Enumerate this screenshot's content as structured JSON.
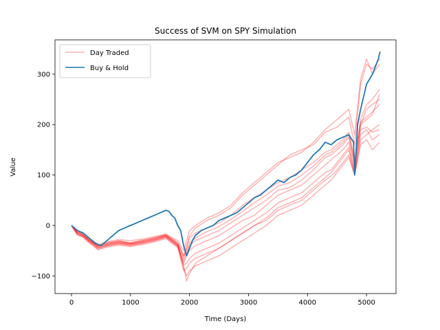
{
  "chart_data": {
    "type": "line",
    "title": "Success of SVM on SPY Simulation",
    "xlabel": "Time (Days)",
    "ylabel": "Value",
    "xlim": [
      -280,
      5500
    ],
    "ylim": [
      -135,
      368
    ],
    "xticks": [
      0,
      1000,
      2000,
      3000,
      4000,
      5000
    ],
    "yticks": [
      -100,
      0,
      100,
      200,
      300
    ],
    "xtick_labels": [
      "0",
      "1000",
      "2000",
      "3000",
      "4000",
      "5000"
    ],
    "ytick_labels": [
      "−100",
      "0",
      "100",
      "200",
      "300"
    ],
    "legend_position": "upper left",
    "grid": false,
    "series": [
      {
        "name": "Day Traded",
        "color": "#ff0000",
        "alpha": 0.3,
        "note_count": 10,
        "runs": [
          {
            "x": [
              0,
              100,
              200,
              300,
              450,
              600,
              800,
              1000,
              1200,
              1400,
              1600,
              1800,
              1900,
              1950,
              2000,
              2100,
              2300,
              2500,
              2700,
              2900,
              3100,
              3300,
              3500,
              3700,
              3900,
              4100,
              4300,
              4400,
              4500,
              4600,
              4700,
              4800,
              4900,
              5000,
              5100,
              5220
            ],
            "y": [
              0,
              -15,
              -20,
              -30,
              -40,
              -35,
              -30,
              -35,
              -30,
              -25,
              -20,
              -35,
              -60,
              -40,
              -20,
              -5,
              10,
              20,
              35,
              60,
              80,
              100,
              120,
              140,
              150,
              160,
              185,
              190,
              195,
              205,
              215,
              160,
              280,
              320,
              310,
              330
            ]
          },
          {
            "x": [
              0,
              100,
              200,
              300,
              450,
              600,
              800,
              1000,
              1200,
              1400,
              1600,
              1800,
              1900,
              1950,
              2000,
              2100,
              2300,
              2500,
              2700,
              2900,
              3100,
              3300,
              3500,
              3700,
              3900,
              4100,
              4300,
              4400,
              4500,
              4600,
              4700,
              4800,
              4900,
              5000,
              5100,
              5220
            ],
            "y": [
              0,
              -10,
              -15,
              -25,
              -38,
              -32,
              -28,
              -30,
              -27,
              -22,
              -18,
              -30,
              -50,
              -30,
              -10,
              0,
              15,
              25,
              40,
              65,
              85,
              105,
              125,
              135,
              145,
              165,
              190,
              200,
              210,
              220,
              230,
              180,
              290,
              330,
              300,
              320
            ]
          },
          {
            "x": [
              0,
              100,
              200,
              300,
              450,
              600,
              800,
              1000,
              1200,
              1400,
              1600,
              1800,
              1900,
              1950,
              2000,
              2100,
              2300,
              2500,
              2700,
              2900,
              3100,
              3300,
              3500,
              3700,
              3900,
              4100,
              4300,
              4400,
              4500,
              4600,
              4700,
              4800,
              4900,
              5000,
              5100,
              5220
            ],
            "y": [
              0,
              -18,
              -22,
              -32,
              -45,
              -40,
              -35,
              -38,
              -34,
              -30,
              -22,
              -40,
              -75,
              -60,
              -50,
              -40,
              -30,
              -20,
              -5,
              10,
              20,
              40,
              60,
              70,
              80,
              100,
              120,
              130,
              140,
              150,
              165,
              110,
              200,
              210,
              220,
              260
            ]
          },
          {
            "x": [
              0,
              100,
              200,
              300,
              450,
              600,
              800,
              1000,
              1200,
              1400,
              1600,
              1800,
              1900,
              1950,
              2000,
              2100,
              2300,
              2500,
              2700,
              2900,
              3100,
              3300,
              3500,
              3700,
              3900,
              4100,
              4300,
              4400,
              4500,
              4600,
              4700,
              4800,
              4900,
              5000,
              5100,
              5220
            ],
            "y": [
              0,
              -12,
              -18,
              -28,
              -42,
              -37,
              -32,
              -36,
              -31,
              -27,
              -20,
              -38,
              -85,
              -100,
              -90,
              -80,
              -70,
              -60,
              -45,
              -30,
              -15,
              0,
              20,
              30,
              40,
              60,
              80,
              90,
              105,
              120,
              135,
              100,
              170,
              180,
              190,
              200
            ]
          },
          {
            "x": [
              0,
              100,
              200,
              300,
              450,
              600,
              800,
              1000,
              1200,
              1400,
              1600,
              1800,
              1900,
              1950,
              2000,
              2100,
              2300,
              2500,
              2700,
              2900,
              3100,
              3300,
              3500,
              3700,
              3900,
              4100,
              4300,
              4400,
              4500,
              4600,
              4700,
              4800,
              4900,
              5000,
              5100,
              5220
            ],
            "y": [
              0,
              -14,
              -20,
              -30,
              -44,
              -38,
              -34,
              -37,
              -33,
              -28,
              -21,
              -39,
              -80,
              -110,
              -95,
              -75,
              -60,
              -45,
              -30,
              -15,
              0,
              15,
              35,
              45,
              55,
              75,
              95,
              105,
              120,
              135,
              150,
              100,
              180,
              190,
              170,
              180
            ]
          },
          {
            "x": [
              0,
              100,
              200,
              300,
              450,
              600,
              800,
              1000,
              1200,
              1400,
              1600,
              1800,
              1900,
              1950,
              2000,
              2100,
              2300,
              2500,
              2700,
              2900,
              3100,
              3300,
              3500,
              3700,
              3900,
              4100,
              4300,
              4400,
              4500,
              4600,
              4700,
              4800,
              4900,
              5000,
              5100,
              5220
            ],
            "y": [
              0,
              -16,
              -21,
              -31,
              -43,
              -39,
              -36,
              -39,
              -35,
              -29,
              -23,
              -41,
              -70,
              -55,
              -40,
              -30,
              -20,
              -10,
              5,
              20,
              35,
              50,
              70,
              75,
              90,
              110,
              135,
              140,
              150,
              160,
              175,
              120,
              200,
              230,
              240,
              250
            ]
          },
          {
            "x": [
              0,
              100,
              200,
              300,
              450,
              600,
              800,
              1000,
              1200,
              1400,
              1600,
              1800,
              1900,
              1950,
              2000,
              2100,
              2300,
              2500,
              2700,
              2900,
              3100,
              3300,
              3500,
              3700,
              3900,
              4100,
              4300,
              4400,
              4500,
              4600,
              4700,
              4800,
              4900,
              5000,
              5100,
              5220
            ],
            "y": [
              0,
              -13,
              -19,
              -29,
              -41,
              -36,
              -33,
              -36,
              -32,
              -26,
              -19,
              -37,
              -65,
              -45,
              -25,
              -15,
              -5,
              5,
              20,
              40,
              55,
              70,
              85,
              95,
              110,
              125,
              145,
              150,
              160,
              170,
              185,
              130,
              210,
              240,
              250,
              270
            ]
          },
          {
            "x": [
              0,
              100,
              200,
              300,
              450,
              600,
              800,
              1000,
              1200,
              1400,
              1600,
              1800,
              1900,
              1950,
              2000,
              2100,
              2300,
              2500,
              2700,
              2900,
              3100,
              3300,
              3500,
              3700,
              3900,
              4100,
              4300,
              4400,
              4500,
              4600,
              4700,
              4800,
              4900,
              5000,
              5100,
              5220
            ],
            "y": [
              0,
              -17,
              -23,
              -33,
              -47,
              -41,
              -37,
              -40,
              -36,
              -31,
              -24,
              -42,
              -78,
              -75,
              -65,
              -55,
              -45,
              -35,
              -20,
              -5,
              10,
              25,
              45,
              55,
              65,
              85,
              105,
              110,
              125,
              140,
              155,
              105,
              190,
              195,
              185,
              190
            ]
          },
          {
            "x": [
              0,
              100,
              200,
              300,
              450,
              600,
              800,
              1000,
              1200,
              1400,
              1600,
              1800,
              1900,
              1950,
              2000,
              2100,
              2300,
              2500,
              2700,
              2900,
              3100,
              3300,
              3500,
              3700,
              3900,
              4100,
              4300,
              4400,
              4500,
              4600,
              4700,
              4800,
              4900,
              5000,
              5100,
              5220
            ],
            "y": [
              0,
              -11,
              -17,
              -27,
              -40,
              -34,
              -31,
              -34,
              -29,
              -24,
              -17,
              -34,
              -60,
              -50,
              -35,
              -25,
              -12,
              -2,
              12,
              28,
              45,
              60,
              78,
              85,
              100,
              118,
              140,
              145,
              155,
              165,
              180,
              125,
              205,
              215,
              225,
              240
            ]
          },
          {
            "x": [
              0,
              100,
              200,
              300,
              450,
              600,
              800,
              1000,
              1200,
              1400,
              1600,
              1800,
              1900,
              1950,
              2000,
              2100,
              2300,
              2500,
              2700,
              2900,
              3100,
              3300,
              3500,
              3700,
              3900,
              4100,
              4300,
              4400,
              4500,
              4600,
              4700,
              4800,
              4900,
              5000,
              5100,
              5220
            ],
            "y": [
              0,
              -19,
              -24,
              -35,
              -48,
              -43,
              -39,
              -42,
              -38,
              -33,
              -26,
              -44,
              -90,
              -85,
              -75,
              -65,
              -55,
              -45,
              -30,
              -15,
              0,
              10,
              30,
              40,
              50,
              70,
              90,
              98,
              110,
              125,
              140,
              100,
              160,
              170,
              150,
              165
            ]
          }
        ]
      },
      {
        "name": "Buy & Hold",
        "color": "#1f77b4",
        "x": [
          0,
          100,
          200,
          300,
          400,
          500,
          600,
          700,
          800,
          900,
          1000,
          1100,
          1200,
          1300,
          1400,
          1500,
          1600,
          1650,
          1700,
          1750,
          1800,
          1850,
          1900,
          1950,
          2000,
          2050,
          2100,
          2200,
          2300,
          2400,
          2500,
          2600,
          2700,
          2800,
          2900,
          3000,
          3100,
          3200,
          3300,
          3400,
          3500,
          3600,
          3700,
          3800,
          3900,
          4000,
          4100,
          4200,
          4300,
          4400,
          4500,
          4600,
          4700,
          4780,
          4800,
          4850,
          4900,
          5000,
          5100,
          5200,
          5230
        ],
        "y": [
          0,
          -10,
          -15,
          -25,
          -35,
          -40,
          -30,
          -20,
          -10,
          -5,
          0,
          5,
          10,
          15,
          20,
          25,
          30,
          28,
          20,
          15,
          0,
          -10,
          -40,
          -60,
          -45,
          -30,
          -20,
          -10,
          -5,
          0,
          10,
          15,
          20,
          25,
          35,
          45,
          55,
          60,
          70,
          80,
          90,
          85,
          95,
          100,
          110,
          125,
          140,
          150,
          165,
          160,
          170,
          175,
          180,
          165,
          100,
          200,
          230,
          280,
          300,
          330,
          345
        ]
      }
    ]
  }
}
